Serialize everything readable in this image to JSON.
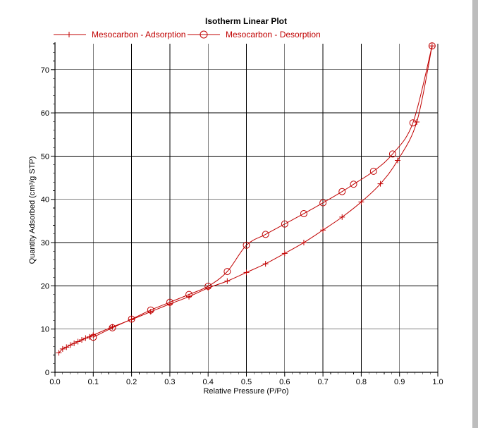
{
  "colors": {
    "series": "#c00000",
    "grid": "#000000",
    "background": "#ffffff"
  },
  "chart_data": {
    "type": "line",
    "title": "Isotherm Linear Plot",
    "xlabel": "Relative Pressure (P/Po)",
    "ylabel": "Quantity Adsorbed (cm³/g STP)",
    "xlim": [
      0,
      1.0
    ],
    "ylim": [
      0,
      76
    ],
    "xticks": [
      "0.0",
      "0.1",
      "0.2",
      "0.3",
      "0.4",
      "0.5",
      "0.6",
      "0.7",
      "0.8",
      "0.9",
      "1.0"
    ],
    "xtick_values": [
      0,
      0.1,
      0.2,
      0.3,
      0.4,
      0.5,
      0.6,
      0.7,
      0.8,
      0.9,
      1.0
    ],
    "yticks": [
      "0",
      "10",
      "20",
      "30",
      "40",
      "50",
      "60",
      "70"
    ],
    "ytick_values": [
      0,
      10,
      20,
      30,
      40,
      50,
      60,
      70
    ],
    "grid": true,
    "legend_position": "top",
    "series": [
      {
        "name": "Mesocarbon - Adsorption",
        "marker": "plus",
        "x": [
          0.01,
          0.02,
          0.03,
          0.04,
          0.05,
          0.06,
          0.07,
          0.08,
          0.09,
          0.1,
          0.15,
          0.2,
          0.25,
          0.3,
          0.35,
          0.4,
          0.45,
          0.5,
          0.55,
          0.6,
          0.65,
          0.7,
          0.75,
          0.8,
          0.85,
          0.895,
          0.945,
          0.985
        ],
        "y": [
          4.5,
          5.4,
          5.8,
          6.3,
          6.7,
          7.1,
          7.5,
          7.9,
          8.2,
          8.6,
          10.5,
          12.2,
          14.0,
          15.8,
          17.5,
          19.5,
          21.1,
          23.1,
          25.1,
          27.5,
          30.0,
          32.9,
          35.9,
          39.4,
          43.6,
          49.0,
          57.9,
          75.5
        ]
      },
      {
        "name": "Mesocarbon - Desorption",
        "marker": "circle",
        "x": [
          0.985,
          0.935,
          0.882,
          0.832,
          0.78,
          0.75,
          0.7,
          0.65,
          0.6,
          0.55,
          0.5,
          0.45,
          0.4,
          0.35,
          0.3,
          0.25,
          0.2,
          0.15,
          0.1
        ],
        "y": [
          75.5,
          57.7,
          50.5,
          46.5,
          43.5,
          41.8,
          39.2,
          36.7,
          34.3,
          31.9,
          29.4,
          23.3,
          19.9,
          18.0,
          16.2,
          14.4,
          12.3,
          10.3,
          8.1
        ]
      }
    ]
  }
}
